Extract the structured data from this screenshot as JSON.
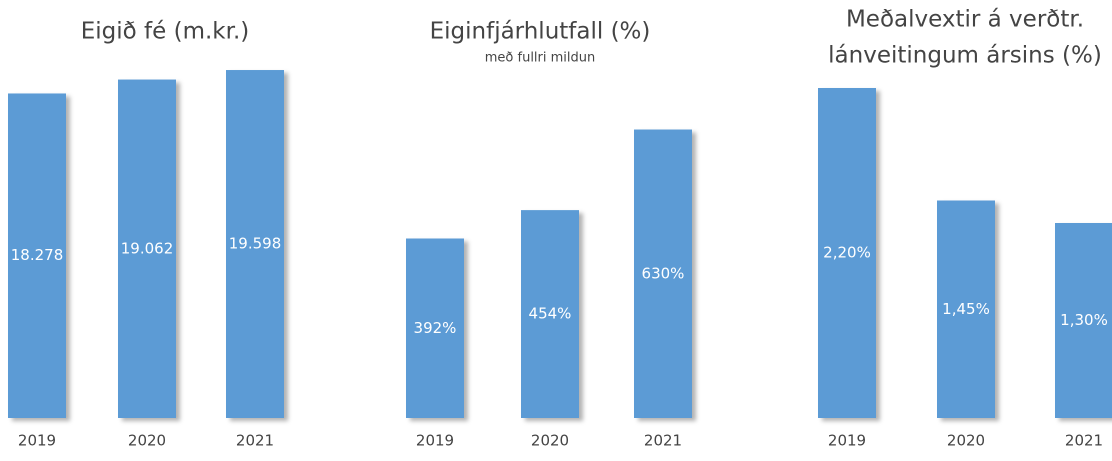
{
  "chart_data": [
    {
      "type": "bar",
      "title": [
        "Eigið fé  (m.kr.)"
      ],
      "categories": [
        "2019",
        "2020",
        "2021"
      ],
      "values": [
        18278,
        19062,
        19598
      ],
      "value_labels": [
        "18.278",
        "19.062",
        "19.598"
      ],
      "color": "#5b9bd5",
      "ylim": [
        0,
        19600
      ]
    },
    {
      "type": "bar",
      "title": [
        "Eiginfjárhlutfall (%)"
      ],
      "subtitle": "með fullri mildun",
      "categories": [
        "2019",
        "2020",
        "2021"
      ],
      "values": [
        392,
        454,
        630
      ],
      "value_labels": [
        "392%",
        "454%",
        "630%"
      ],
      "color": "#5b9bd5",
      "ylim": [
        0,
        760
      ]
    },
    {
      "type": "bar",
      "title": [
        "Meðalvextir á verðtr.",
        "lánveitingum ársins (%)"
      ],
      "categories": [
        "2019",
        "2020",
        "2021"
      ],
      "values": [
        2.2,
        1.45,
        1.3
      ],
      "value_labels": [
        "2,20%",
        "1,45%",
        "1,30%"
      ],
      "color": "#5b9bd5",
      "ylim": [
        0,
        2.32
      ]
    }
  ]
}
